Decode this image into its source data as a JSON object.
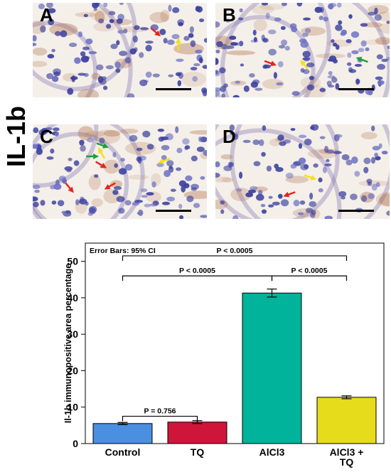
{
  "figure": {
    "side_label": "IL-1b",
    "panels": [
      {
        "letter": "A",
        "seed": 11,
        "arrows": [
          {
            "color": "#e8231c",
            "ang": 40
          },
          {
            "color": "#f2e01b",
            "ang": -90
          }
        ]
      },
      {
        "letter": "B",
        "seed": 23,
        "arrows": [
          {
            "color": "#1f9e3d",
            "ang": 200
          },
          {
            "color": "#e8231c",
            "ang": 20
          },
          {
            "color": "#f2e01b",
            "ang": 230
          }
        ]
      },
      {
        "letter": "C",
        "seed": 37,
        "arrows": [
          {
            "color": "#e8231c",
            "ang": 30
          },
          {
            "color": "#1f9e3d",
            "ang": 0
          },
          {
            "color": "#e8231c",
            "ang": 50
          },
          {
            "color": "#1f9e3d",
            "ang": 20
          },
          {
            "color": "#f2e01b",
            "ang": -120
          },
          {
            "color": "#f2e01b",
            "ang": 160
          },
          {
            "color": "#e8231c",
            "ang": 150
          }
        ]
      },
      {
        "letter": "D",
        "seed": 51,
        "arrows": [
          {
            "color": "#f2e01b",
            "ang": 20
          },
          {
            "color": "#e8231c",
            "ang": 160
          }
        ]
      }
    ],
    "colors": {
      "nucleus": "#3a3f9e",
      "nucleus_light": "#6f73c4",
      "brown": "#a9633a",
      "background": "#f4efe9",
      "scale_bar": "#000000"
    }
  },
  "chart_data": {
    "type": "bar",
    "categories": [
      "Control",
      "TQ",
      "AlCl3",
      "AlCl3 +\nTQ"
    ],
    "values": [
      5.5,
      5.9,
      41.3,
      12.7
    ],
    "error_low": [
      5.2,
      5.5,
      40.2,
      12.3
    ],
    "error_high": [
      5.8,
      6.3,
      42.4,
      13.1
    ],
    "bar_colors": [
      "#4a8fe0",
      "#d0153a",
      "#00b39a",
      "#e6dc1c"
    ],
    "ylabel": "Il-1b immunopositive area percentage",
    "ylim": [
      0,
      55
    ],
    "yticks": [
      0,
      10,
      20,
      30,
      40,
      50
    ],
    "annotation": "Error Bars: 95% CI",
    "comparisons": [
      {
        "from": 0,
        "to": 1,
        "label": "P = 0.756",
        "level": 7.5
      },
      {
        "from": 0,
        "to": 2,
        "label": "P < 0.0005",
        "level": 46
      },
      {
        "from": 2,
        "to": 3,
        "label": "P < 0.0005",
        "level": 46
      },
      {
        "from": 0,
        "to": 3,
        "label": "P < 0.0005",
        "level": 51.5
      }
    ]
  }
}
